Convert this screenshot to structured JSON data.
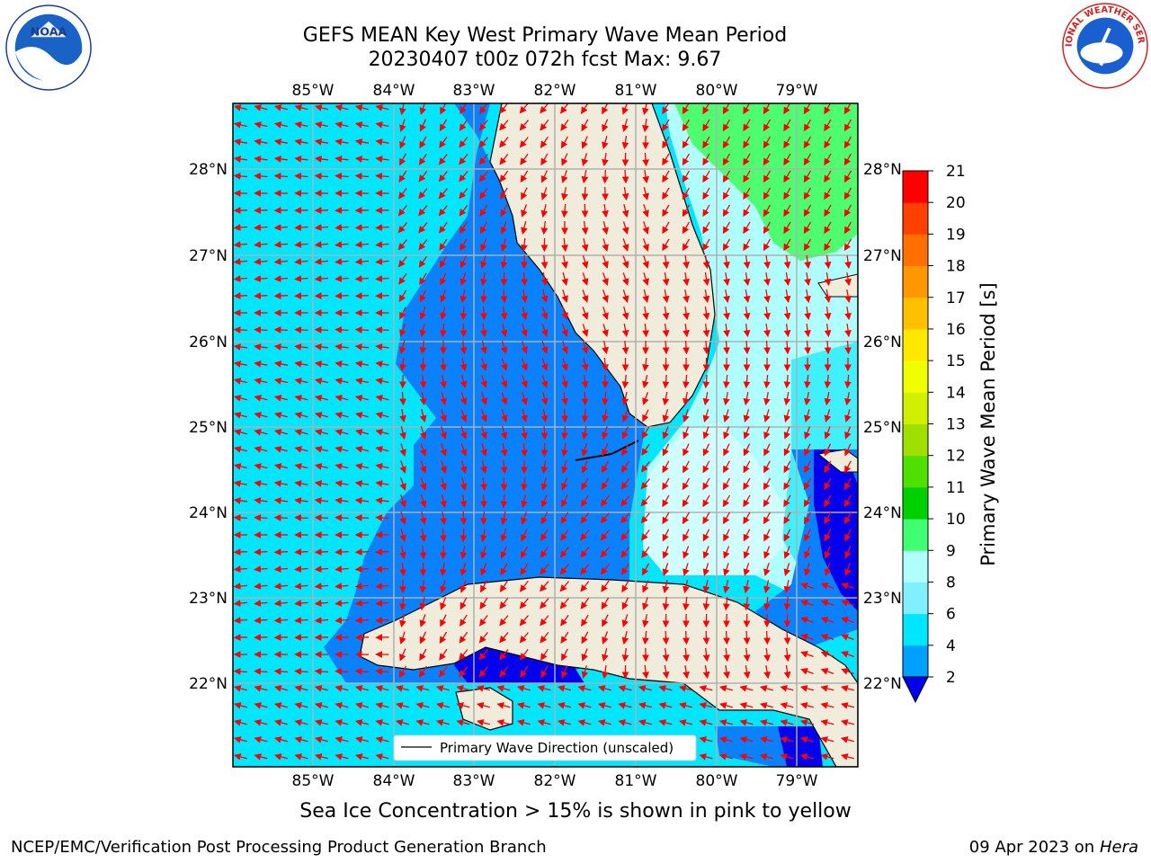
{
  "title": {
    "line1": "GEFS MEAN Key West Primary Wave Mean Period",
    "line2": "20230407 t00z 072h fcst   Max: 9.67"
  },
  "logos": {
    "left": {
      "icon": "noaa-logo",
      "text": "NOAA"
    },
    "right": {
      "icon": "nws-logo",
      "text": "NATIONAL WEATHER SERVICE"
    }
  },
  "map": {
    "lon_ticks": [
      "85°W",
      "84°W",
      "83°W",
      "82°W",
      "81°W",
      "80°W",
      "79°W"
    ],
    "lat_ticks": [
      "28°N",
      "27°N",
      "26°N",
      "25°N",
      "24°N",
      "23°N",
      "22°N"
    ],
    "legend_label": "Primary Wave Direction (unscaled)",
    "arrow_color": "#ff0000",
    "land_color": "#efecdc"
  },
  "colorbar": {
    "label": "Primary Wave Mean Period [s]",
    "ticks": [
      "2",
      "4",
      "6",
      "8",
      "9",
      "10",
      "11",
      "12",
      "13",
      "14",
      "15",
      "16",
      "17",
      "18",
      "19",
      "20",
      "21"
    ],
    "colors": [
      "#0050ff",
      "#00a0ff",
      "#00e6ff",
      "#80f0ff",
      "#b0ffff",
      "#40ff70",
      "#00d000",
      "#50e000",
      "#a0e000",
      "#d0f000",
      "#f0ff00",
      "#ffe800",
      "#ffc000",
      "#ff9800",
      "#ff7000",
      "#ff4000",
      "#ff0000"
    ]
  },
  "sea_ice_note": "Sea Ice Concentration > 15% is shown in pink to yellow",
  "footer": {
    "left": "NCEP/EMC/Verification Post Processing Product Generation Branch",
    "right_date": "09 Apr 2023 on ",
    "right_host": "Hera"
  }
}
